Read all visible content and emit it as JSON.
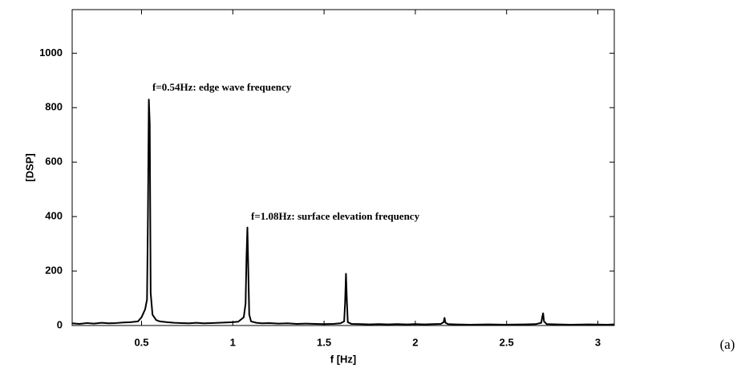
{
  "chart_data": {
    "type": "line",
    "xlabel": "f [Hz]",
    "ylabel": "[DSP]",
    "annotations": [
      "f=0.54Hz: edge wave frequency",
      "f=1.08Hz: surface elevation frequency"
    ],
    "panel_label": "(a)",
    "xlim": [
      0.12,
      3.09
    ],
    "ylim": [
      0,
      1160
    ],
    "xticks": [
      0.5,
      1,
      1.5,
      2,
      2.5,
      3
    ],
    "yticks": [
      0,
      200,
      400,
      600,
      800,
      1000
    ],
    "grid": false,
    "series": [
      {
        "color": "#000000",
        "x": [
          0.12,
          0.16,
          0.2,
          0.24,
          0.28,
          0.32,
          0.36,
          0.4,
          0.44,
          0.48,
          0.5,
          0.52,
          0.53,
          0.535,
          0.54,
          0.545,
          0.55,
          0.56,
          0.58,
          0.6,
          0.64,
          0.68,
          0.72,
          0.76,
          0.8,
          0.84,
          0.88,
          0.92,
          0.96,
          1.0,
          1.03,
          1.06,
          1.07,
          1.075,
          1.08,
          1.085,
          1.09,
          1.1,
          1.13,
          1.16,
          1.2,
          1.25,
          1.3,
          1.35,
          1.4,
          1.45,
          1.5,
          1.55,
          1.59,
          1.61,
          1.615,
          1.62,
          1.625,
          1.63,
          1.65,
          1.7,
          1.75,
          1.8,
          1.85,
          1.9,
          1.95,
          2.0,
          2.05,
          2.1,
          2.14,
          2.155,
          2.16,
          2.165,
          2.18,
          2.22,
          2.3,
          2.4,
          2.5,
          2.6,
          2.66,
          2.69,
          2.695,
          2.7,
          2.705,
          2.72,
          2.78,
          2.85,
          2.95,
          3.05,
          3.09
        ],
        "values": [
          8,
          6,
          9,
          7,
          10,
          8,
          9,
          11,
          12,
          15,
          30,
          60,
          95,
          400,
          830,
          740,
          120,
          40,
          20,
          15,
          12,
          10,
          9,
          8,
          10,
          8,
          9,
          10,
          11,
          12,
          14,
          30,
          80,
          250,
          360,
          200,
          40,
          15,
          10,
          8,
          9,
          7,
          8,
          6,
          7,
          6,
          5,
          6,
          8,
          15,
          80,
          190,
          90,
          12,
          6,
          5,
          4,
          5,
          4,
          5,
          4,
          5,
          4,
          5,
          6,
          12,
          28,
          10,
          5,
          4,
          3,
          4,
          3,
          4,
          5,
          10,
          30,
          45,
          15,
          5,
          4,
          3,
          4,
          3,
          4
        ]
      }
    ]
  }
}
